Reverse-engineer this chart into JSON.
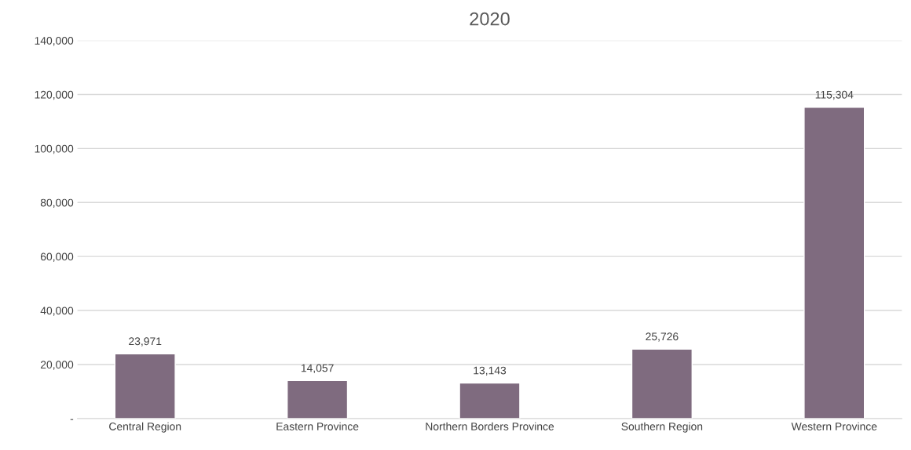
{
  "chart_data": {
    "type": "bar",
    "title": "2020",
    "categories": [
      "Central Region",
      "Eastern Province",
      "Northern Borders Province",
      "Southern Region",
      "Western Province"
    ],
    "values": [
      23971,
      14057,
      13143,
      25726,
      115304
    ],
    "value_labels": [
      "23,971",
      "14,057",
      "13,143",
      "25,726",
      "115,304"
    ],
    "color": "#7f6b7f",
    "ylim": [
      0,
      140000
    ],
    "yticks": [
      {
        "value": 0,
        "label": "-"
      },
      {
        "value": 20000,
        "label": "20,000"
      },
      {
        "value": 40000,
        "label": "40,000"
      },
      {
        "value": 60000,
        "label": "60,000"
      },
      {
        "value": 80000,
        "label": "80,000"
      },
      {
        "value": 100000,
        "label": "100,000"
      },
      {
        "value": 120000,
        "label": "120,000"
      },
      {
        "value": 140000,
        "label": "140,000"
      }
    ],
    "grid": "y"
  }
}
